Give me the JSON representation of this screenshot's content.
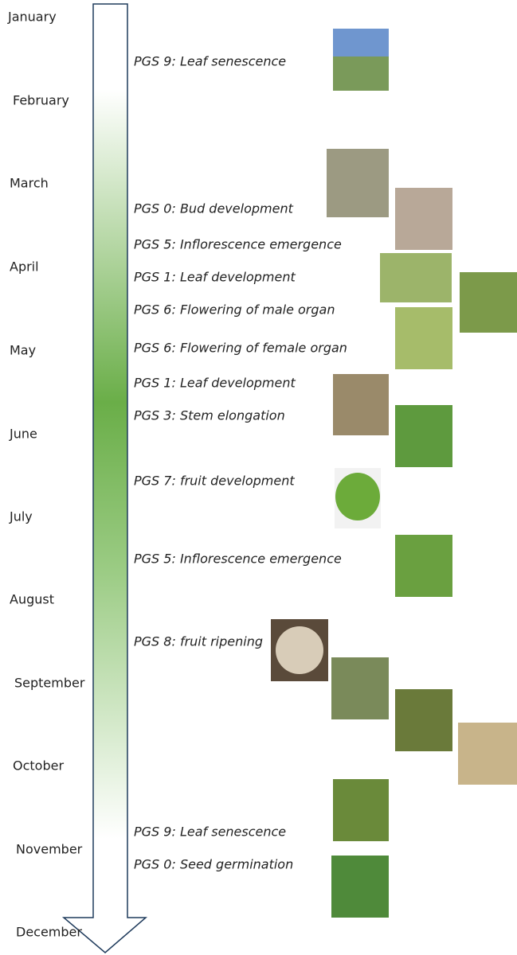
{
  "months": [
    "January",
    "February",
    "March",
    "April",
    "May",
    "June",
    "July",
    "August",
    "September",
    "October",
    "November",
    "December"
  ],
  "stages": [
    "PGS 9: Leaf senescence",
    "PGS 0: Bud development",
    "PGS 5: Inflorescence emergence",
    "PGS 1: Leaf development",
    "PGS 6: Flowering of male organ",
    "PGS 6: Flowering of female organ",
    "PGS 1: Leaf development",
    "PGS 3: Stem elongation",
    "PGS 7: fruit development",
    "PGS 5: Inflorescence emergence",
    "PGS 8: fruit ripening",
    "PGS 9: Leaf senescence",
    "PGS 0: Seed germination"
  ]
}
